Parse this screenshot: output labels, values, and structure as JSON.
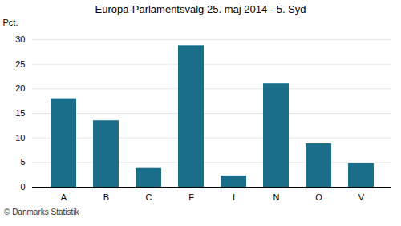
{
  "chart_data": {
    "type": "bar",
    "title": "Europa-Parlamentsvalg 25. maj 2014 - 5. Syd",
    "categories": [
      "A",
      "B",
      "C",
      "F",
      "I",
      "N",
      "O",
      "V"
    ],
    "values": [
      18.0,
      13.5,
      3.8,
      28.8,
      2.3,
      21.0,
      8.8,
      4.8
    ],
    "color": "#1a6e8a",
    "ylabel": "Pct.",
    "ylim": [
      0,
      30
    ],
    "yticks": [
      0,
      5,
      10,
      15,
      20,
      25,
      30
    ],
    "grid": true,
    "footer": "© Danmarks Statistik"
  }
}
